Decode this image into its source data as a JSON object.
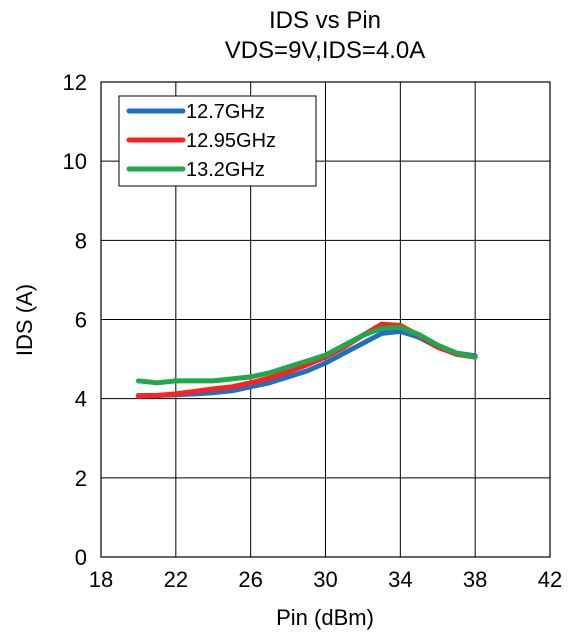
{
  "chart_data": {
    "type": "line",
    "title": "IDS vs Pin",
    "subtitle": "VDS=9V,IDS=4.0A",
    "xlabel": "Pin (dBm)",
    "ylabel": "IDS (A)",
    "xlim": [
      18,
      42
    ],
    "ylim": [
      0,
      12
    ],
    "xticks": [
      "18",
      "22",
      "26",
      "30",
      "34",
      "38",
      "42"
    ],
    "yticks": [
      "0",
      "2",
      "4",
      "6",
      "8",
      "10",
      "12"
    ],
    "grid": true,
    "legend_position": "top-left",
    "series": [
      {
        "name": "12.7GHz",
        "color": "#1f6fc0",
        "x": [
          20,
          21,
          22,
          23,
          24,
          25,
          26,
          27,
          28,
          29,
          30,
          31,
          32,
          33,
          34,
          35,
          36,
          37,
          38
        ],
        "y": [
          4.08,
          4.08,
          4.1,
          4.12,
          4.15,
          4.2,
          4.3,
          4.4,
          4.55,
          4.7,
          4.9,
          5.15,
          5.4,
          5.65,
          5.7,
          5.55,
          5.3,
          5.15,
          5.08
        ]
      },
      {
        "name": "12.95GHz",
        "color": "#ff2020",
        "x": [
          20,
          21,
          22,
          23,
          24,
          25,
          26,
          27,
          28,
          29,
          30,
          31,
          32,
          33,
          34,
          35,
          36,
          37,
          38
        ],
        "y": [
          4.06,
          4.08,
          4.12,
          4.18,
          4.25,
          4.3,
          4.4,
          4.52,
          4.68,
          4.85,
          5.05,
          5.3,
          5.6,
          5.88,
          5.85,
          5.6,
          5.3,
          5.12,
          5.05
        ]
      },
      {
        "name": "13.2GHz",
        "color": "#21a84a",
        "x": [
          20,
          21,
          22,
          23,
          24,
          25,
          26,
          27,
          28,
          29,
          30,
          31,
          32,
          33,
          34,
          35,
          36,
          37,
          38
        ],
        "y": [
          4.45,
          4.4,
          4.45,
          4.45,
          4.45,
          4.5,
          4.55,
          4.65,
          4.8,
          4.95,
          5.1,
          5.35,
          5.6,
          5.78,
          5.8,
          5.62,
          5.35,
          5.15,
          5.05
        ]
      }
    ]
  }
}
